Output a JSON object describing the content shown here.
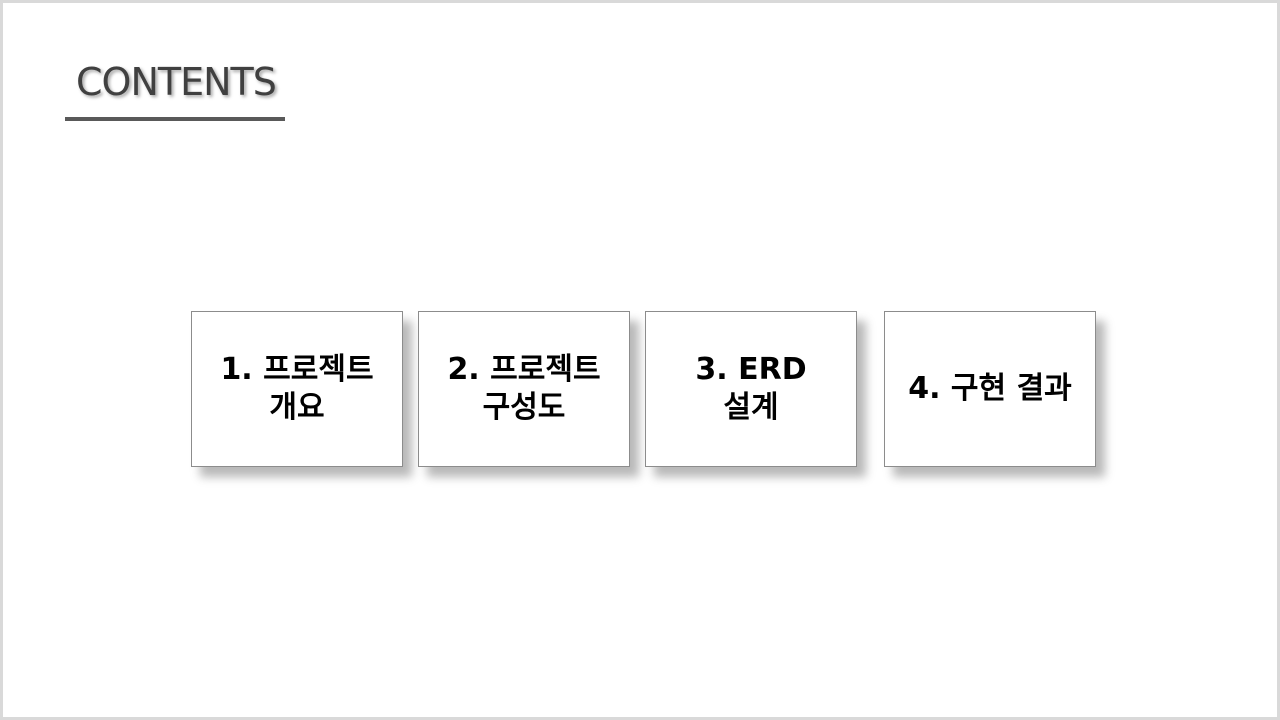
{
  "slide": {
    "title": "CONTENTS"
  },
  "cards": [
    {
      "label": "1. 프로젝트\n개요"
    },
    {
      "label": "2. 프로젝트\n구성도"
    },
    {
      "label": "3. ERD\n설계"
    },
    {
      "label": "4. 구현 결과"
    }
  ]
}
